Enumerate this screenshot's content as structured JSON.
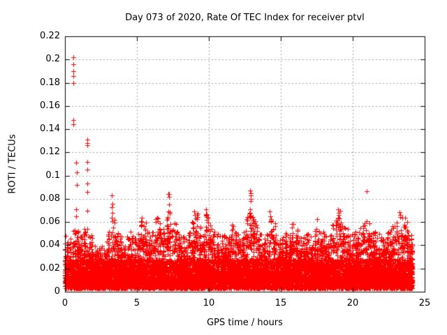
{
  "page": {
    "background": "#ffffff"
  },
  "chart_data": {
    "type": "scatter",
    "title": "Day 073 of 2020, Rate Of TEC Index for receiver ptvl",
    "xlabel": "GPS time / hours",
    "ylabel": "ROTI / TECUs",
    "xlim": [
      0,
      25
    ],
    "ylim": [
      0,
      0.22
    ],
    "xtick_values": [
      0,
      5,
      10,
      15,
      20,
      25
    ],
    "xtick_labels": [
      "0",
      "5",
      "10",
      "15",
      "20",
      "25"
    ],
    "ytick_values": [
      0,
      0.02,
      0.04,
      0.06,
      0.08,
      0.1,
      0.12,
      0.14,
      0.16,
      0.18,
      0.2,
      0.22
    ],
    "ytick_labels": [
      "0",
      "0.02",
      "0.04",
      "0.06",
      "0.08",
      "0.1",
      "0.12",
      "0.14",
      "0.16",
      "0.18",
      "0.2",
      "0.22"
    ],
    "grid": true,
    "legend": "none",
    "marker": "plus",
    "marker_color": "#ff0000",
    "grid_color": "#a0a0a0",
    "frame_color": "#000000",
    "series": [
      {
        "name": "ROTI",
        "x_range_hours": [
          0,
          24.15
        ],
        "dense_band_roti": [
          0.003,
          0.03
        ],
        "envelope_bin_hours": 0.25,
        "envelope_max_roti": [
          0.05,
          0.046,
          0.06,
          0.055,
          0.048,
          0.055,
          0.055,
          0.05,
          0.042,
          0.038,
          0.04,
          0.045,
          0.052,
          0.062,
          0.058,
          0.048,
          0.042,
          0.048,
          0.052,
          0.046,
          0.05,
          0.064,
          0.06,
          0.052,
          0.058,
          0.064,
          0.06,
          0.055,
          0.065,
          0.07,
          0.06,
          0.052,
          0.05,
          0.048,
          0.052,
          0.06,
          0.068,
          0.062,
          0.055,
          0.07,
          0.06,
          0.055,
          0.052,
          0.05,
          0.052,
          0.055,
          0.06,
          0.058,
          0.05,
          0.055,
          0.065,
          0.068,
          0.065,
          0.058,
          0.05,
          0.048,
          0.055,
          0.066,
          0.06,
          0.05,
          0.048,
          0.052,
          0.055,
          0.06,
          0.055,
          0.05,
          0.048,
          0.052,
          0.05,
          0.055,
          0.064,
          0.06,
          0.055,
          0.052,
          0.058,
          0.064,
          0.07,
          0.062,
          0.055,
          0.05,
          0.052,
          0.055,
          0.058,
          0.062,
          0.06,
          0.055,
          0.052,
          0.05,
          0.048,
          0.052,
          0.055,
          0.058,
          0.06,
          0.068,
          0.065,
          0.06,
          0.05
        ],
        "outlier_points": [
          [
            0.58,
            0.202
          ],
          [
            0.6,
            0.196
          ],
          [
            0.57,
            0.19
          ],
          [
            0.59,
            0.186
          ],
          [
            0.6,
            0.18
          ],
          [
            0.56,
            0.148
          ],
          [
            0.58,
            0.144
          ],
          [
            0.8,
            0.111
          ],
          [
            0.81,
            0.103
          ],
          [
            0.82,
            0.092
          ],
          [
            0.8,
            0.071
          ],
          [
            0.78,
            0.065
          ],
          [
            1.55,
            0.131
          ],
          [
            1.56,
            0.128
          ],
          [
            1.55,
            0.126
          ],
          [
            1.56,
            0.112
          ],
          [
            1.55,
            0.105
          ],
          [
            1.57,
            0.093
          ],
          [
            1.55,
            0.086
          ],
          [
            1.56,
            0.07
          ],
          [
            3.25,
            0.083
          ],
          [
            3.28,
            0.076
          ],
          [
            3.26,
            0.073
          ],
          [
            3.3,
            0.068
          ],
          [
            3.27,
            0.064
          ],
          [
            5.35,
            0.064
          ],
          [
            5.3,
            0.061
          ],
          [
            7.2,
            0.084
          ],
          [
            7.23,
            0.084
          ],
          [
            7.21,
            0.082
          ],
          [
            7.22,
            0.075
          ],
          [
            7.2,
            0.069
          ],
          [
            9.0,
            0.069
          ],
          [
            9.05,
            0.066
          ],
          [
            9.1,
            0.063
          ],
          [
            9.8,
            0.071
          ],
          [
            9.82,
            0.067
          ],
          [
            9.85,
            0.062
          ],
          [
            12.88,
            0.087
          ],
          [
            12.9,
            0.085
          ],
          [
            12.89,
            0.083
          ],
          [
            12.91,
            0.08
          ],
          [
            12.9,
            0.078
          ],
          [
            12.85,
            0.071
          ],
          [
            12.87,
            0.068
          ],
          [
            12.92,
            0.065
          ],
          [
            14.2,
            0.069
          ],
          [
            14.25,
            0.065
          ],
          [
            14.3,
            0.06
          ],
          [
            19.0,
            0.071
          ],
          [
            19.01,
            0.068
          ],
          [
            19.02,
            0.066
          ],
          [
            18.99,
            0.064
          ],
          [
            20.97,
            0.0865
          ],
          [
            20.97,
            0.0607
          ],
          [
            23.25,
            0.0685
          ],
          [
            23.3,
            0.066
          ]
        ]
      }
    ]
  }
}
